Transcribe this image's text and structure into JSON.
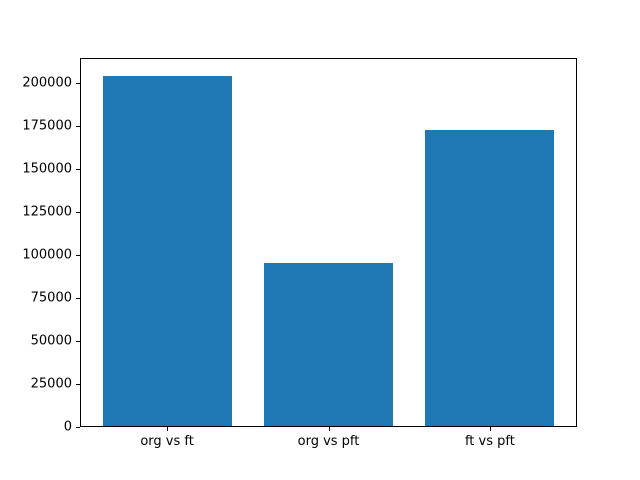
{
  "chart_data": {
    "type": "bar",
    "title": "",
    "xlabel": "",
    "ylabel": "",
    "categories": [
      "org vs ft",
      "org vs pft",
      "ft vs pft"
    ],
    "values": [
      204500,
      95500,
      173000
    ],
    "ytick_values": [
      0,
      25000,
      50000,
      75000,
      100000,
      125000,
      150000,
      175000,
      200000
    ],
    "ytick_labels": [
      "0",
      "25000",
      "50000",
      "75000",
      "100000",
      "125000",
      "150000",
      "175000",
      "200000"
    ],
    "ylim": [
      0,
      214700
    ],
    "bar_width_fraction": 0.8,
    "bar_color": "#1f77b4",
    "frame_color": "#000000",
    "grid": false,
    "legend": null
  }
}
